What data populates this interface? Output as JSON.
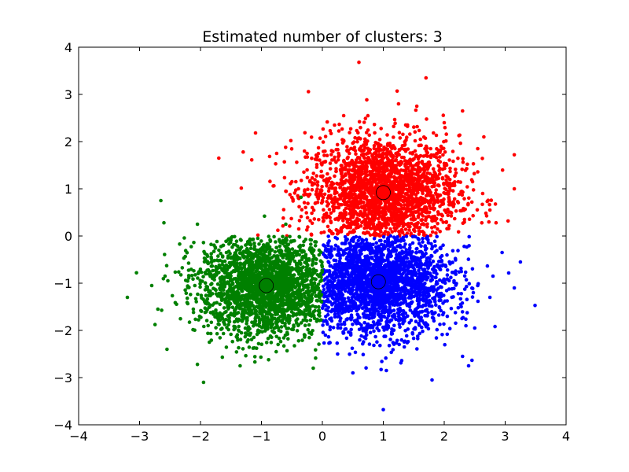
{
  "chart_data": {
    "type": "scatter",
    "title": "Estimated number of clusters: 3",
    "xlabel": "",
    "ylabel": "",
    "xlim": [
      -4,
      4
    ],
    "ylim": [
      -4,
      4
    ],
    "xticks": [
      -4,
      -3,
      -2,
      -1,
      0,
      1,
      2,
      3,
      4
    ],
    "yticks": [
      -4,
      -3,
      -2,
      -1,
      0,
      1,
      2,
      3,
      4
    ],
    "xtick_labels": [
      "−4",
      "−3",
      "−2",
      "−1",
      "0",
      "1",
      "2",
      "3",
      "4"
    ],
    "ytick_labels": [
      "−4",
      "−3",
      "−2",
      "−1",
      "0",
      "1",
      "2",
      "3",
      "4"
    ],
    "grid": false,
    "legend": "none",
    "series": [
      {
        "color": "#ff0000",
        "cluster_center": [
          1.0,
          0.92
        ],
        "region": "y > 0",
        "spread": [
          0.62,
          0.6
        ],
        "points": [
          [
            0.6,
            3.68
          ],
          [
            1.7,
            3.35
          ],
          [
            -1.7,
            1.65
          ],
          [
            3.15,
            1.72
          ],
          [
            3.15,
            1.0
          ],
          [
            -1.3,
            1.78
          ],
          [
            -0.75,
            1.75
          ],
          [
            2.65,
            2.1
          ],
          [
            2.85,
            0.28
          ],
          [
            2.55,
            1.85
          ],
          [
            2.75,
            0.55
          ],
          [
            0.2,
            2.35
          ],
          [
            -0.25,
            1.4
          ],
          [
            -0.6,
            0.95
          ],
          [
            -0.5,
            1.15
          ],
          [
            2.3,
            2.65
          ],
          [
            1.55,
            2.75
          ],
          [
            0.35,
            2.55
          ],
          [
            1.25,
            2.8
          ],
          [
            2.0,
            2.4
          ]
        ]
      },
      {
        "color": "#0000ff",
        "cluster_center": [
          0.92,
          -0.97
        ],
        "region": "x > 0, y < 0",
        "spread": [
          0.6,
          0.55
        ],
        "points": [
          [
            1.0,
            -3.68
          ],
          [
            1.8,
            -3.05
          ],
          [
            2.4,
            -2.75
          ],
          [
            3.25,
            -0.55
          ],
          [
            3.15,
            -1.1
          ],
          [
            2.8,
            -0.85
          ],
          [
            2.5,
            -1.95
          ],
          [
            0.5,
            -2.9
          ],
          [
            1.05,
            -2.85
          ],
          [
            2.95,
            -0.35
          ],
          [
            2.55,
            -1.05
          ],
          [
            2.3,
            -2.55
          ],
          [
            0.25,
            -2.5
          ],
          [
            0.05,
            -2.1
          ],
          [
            2.75,
            -1.3
          ]
        ]
      },
      {
        "color": "#008000",
        "cluster_center": [
          -0.92,
          -1.05
        ],
        "region": "x < 0, y < 0",
        "spread": [
          0.55,
          0.55
        ],
        "points": [
          [
            -3.2,
            -1.3
          ],
          [
            -3.05,
            -0.78
          ],
          [
            -1.95,
            -3.1
          ],
          [
            -2.05,
            -2.72
          ],
          [
            -2.55,
            -2.4
          ],
          [
            -2.65,
            0.75
          ],
          [
            -2.6,
            0.28
          ],
          [
            -2.05,
            0.25
          ],
          [
            -0.35,
            0.82
          ],
          [
            -0.95,
            0.42
          ],
          [
            -2.8,
            -1.05
          ],
          [
            -2.7,
            -1.55
          ],
          [
            -1.35,
            -2.75
          ],
          [
            -0.15,
            -2.8
          ],
          [
            -0.6,
            0.25
          ]
        ]
      }
    ]
  }
}
